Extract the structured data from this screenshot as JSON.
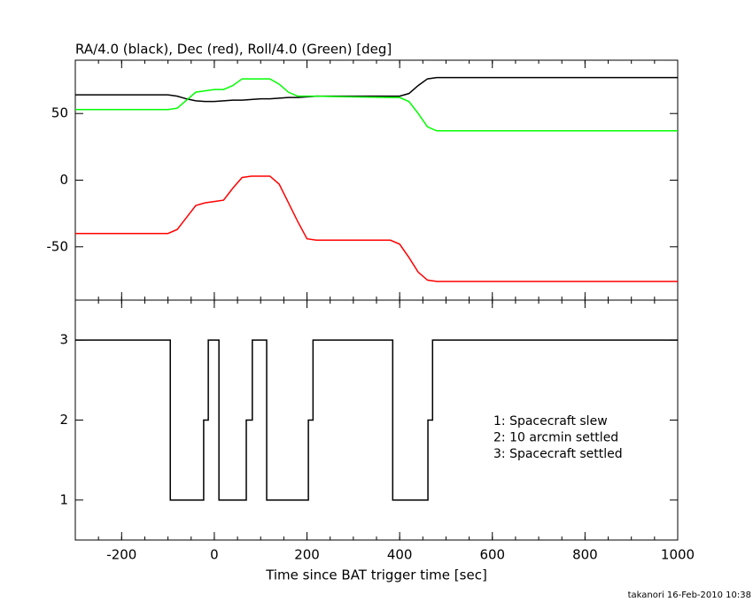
{
  "chart_data": [
    {
      "type": "line",
      "title": "RA/4.0 (black), Dec (red), Roll/4.0 (Green) [deg]",
      "x": [
        -300,
        -100,
        -80,
        -60,
        -40,
        -20,
        0,
        20,
        40,
        60,
        80,
        100,
        120,
        140,
        160,
        180,
        200,
        220,
        380,
        400,
        420,
        440,
        460,
        480,
        1000
      ],
      "series": [
        {
          "color": "#000000",
          "values": [
            64,
            64,
            63,
            61,
            59.5,
            59,
            59,
            59.5,
            60,
            60,
            60.5,
            61,
            61,
            61.5,
            62,
            62,
            62.5,
            63,
            63,
            63,
            65,
            71,
            76,
            77,
            77
          ]
        },
        {
          "color": "#ff0000",
          "values": [
            -40,
            -40,
            -37,
            -28,
            -19,
            -17,
            -16,
            -15,
            -6,
            2,
            3,
            3,
            3,
            -3,
            -17,
            -31,
            -44,
            -45,
            -45,
            -48,
            -58,
            -69,
            -75,
            -76,
            -76
          ]
        },
        {
          "color": "#00ff00",
          "values": [
            53,
            53,
            54,
            60,
            66,
            67,
            68,
            68,
            71,
            76,
            76,
            76,
            76,
            72,
            66,
            63,
            63,
            63,
            62,
            62,
            59,
            50,
            40,
            37,
            37
          ]
        }
      ],
      "xlim": [
        -300,
        1000
      ],
      "xticks": [
        -200,
        0,
        200,
        400,
        600,
        800,
        1000
      ],
      "ylim": [
        -90,
        90
      ],
      "yticks": [
        -50,
        0,
        50
      ]
    },
    {
      "type": "step",
      "xlabel": "Time since BAT trigger time [sec]",
      "x": [
        -300,
        -95,
        -23,
        -13,
        10,
        69,
        82,
        113,
        203,
        213,
        385,
        461,
        471,
        1000
      ],
      "series": [
        {
          "color": "#000000",
          "values": [
            3,
            1,
            2,
            3,
            1,
            2,
            3,
            1,
            2,
            3,
            1,
            2,
            3,
            3
          ]
        }
      ],
      "xlim": [
        -300,
        1000
      ],
      "xticks": [
        -200,
        0,
        200,
        400,
        600,
        800,
        1000
      ],
      "ylim": [
        0.5,
        3.5
      ],
      "yticks": [
        1,
        2,
        3
      ],
      "annotations": [
        "1: Spacecraft slew",
        "2: 10 arcmin settled",
        "3: Spacecraft settled"
      ]
    }
  ],
  "footer": "takanori 16-Feb-2010 10:38"
}
